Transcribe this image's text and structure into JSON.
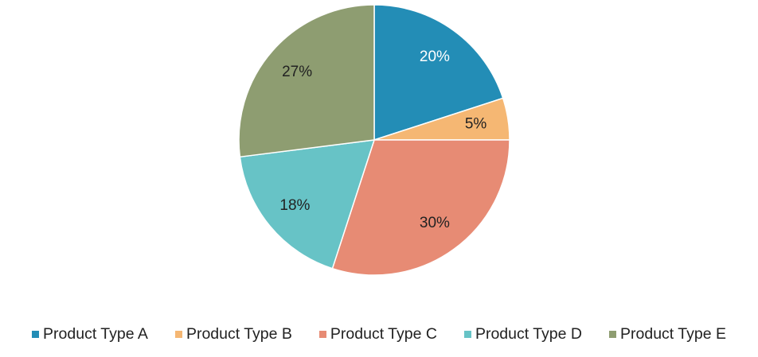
{
  "chart_data": {
    "type": "pie",
    "title": "",
    "categories": [
      "Product Type A",
      "Product Type B",
      "Product Type C",
      "Product Type D",
      "Product Type E"
    ],
    "values": [
      20,
      5,
      30,
      18,
      27
    ],
    "data_labels": [
      "20%",
      "5%",
      "30%",
      "18%",
      "27%"
    ],
    "colors": [
      "#238db6",
      "#f5b773",
      "#e78b74",
      "#67c3c6",
      "#8e9d71"
    ],
    "label_colors": [
      "#ffffff",
      "#222222",
      "#222222",
      "#222222",
      "#222222"
    ],
    "start_angle_deg": 0,
    "direction": "clockwise",
    "legend_position": "bottom"
  }
}
